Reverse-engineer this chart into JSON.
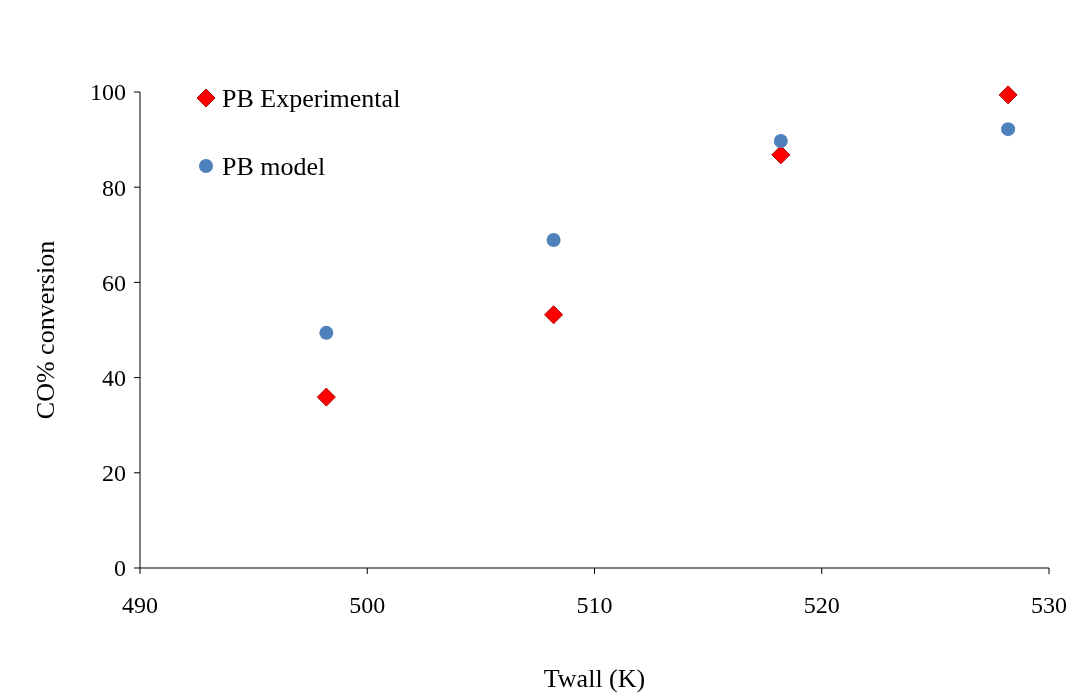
{
  "chart_data": {
    "type": "scatter",
    "xlabel": "Twall (K)",
    "ylabel": "CO% conversion",
    "x": [
      498.2,
      508.2,
      518.2,
      528.2
    ],
    "series": [
      {
        "name": "PB Experimental",
        "color": "#ff0000",
        "marker": "diamond",
        "values": [
          35.9,
          53.2,
          86.8,
          99.4
        ]
      },
      {
        "name": "PB model",
        "color": "#4f81bd",
        "marker": "circle",
        "values": [
          49.4,
          68.9,
          89.7,
          92.2
        ]
      }
    ],
    "xlim": [
      490,
      530
    ],
    "xticks": [
      490,
      500,
      510,
      520,
      530
    ],
    "ylim": [
      0,
      100
    ],
    "yticks": [
      0,
      20,
      40,
      60,
      80,
      100
    ],
    "legend": "top left",
    "grid": false
  }
}
